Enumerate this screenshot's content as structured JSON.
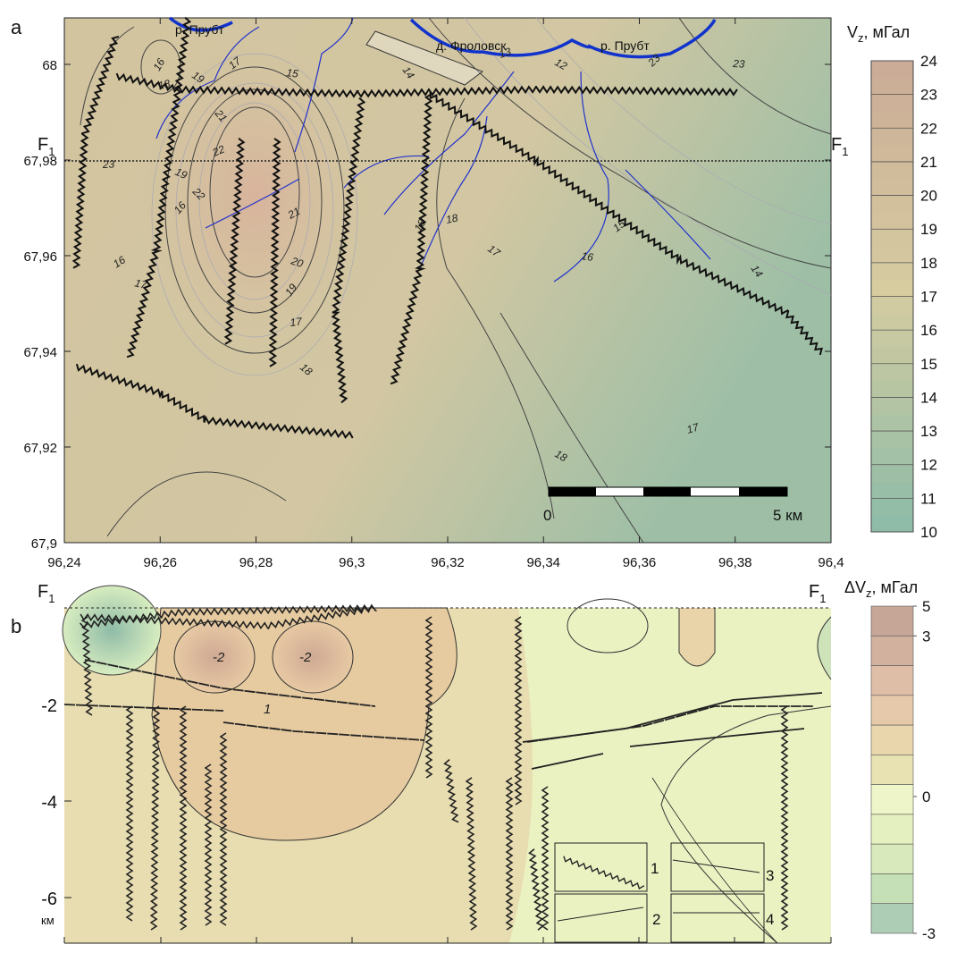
{
  "panel_a": {
    "label": "a",
    "x_ticks": [
      {
        "value": 96.24,
        "label": "96,24"
      },
      {
        "value": 96.26,
        "label": "96,26"
      },
      {
        "value": 96.28,
        "label": "96,28"
      },
      {
        "value": 96.3,
        "label": "96,3"
      },
      {
        "value": 96.32,
        "label": "96,32"
      },
      {
        "value": 96.34,
        "label": "96,34"
      },
      {
        "value": 96.36,
        "label": "96,36"
      },
      {
        "value": 96.38,
        "label": "96,38"
      },
      {
        "value": 96.4,
        "label": "96,4"
      }
    ],
    "y_ticks": [
      {
        "value": 67.9,
        "label": "67,9"
      },
      {
        "value": 67.92,
        "label": "67,92"
      },
      {
        "value": 67.94,
        "label": "67,94"
      },
      {
        "value": 67.96,
        "label": "67,96"
      },
      {
        "value": 67.98,
        "label": "67,98"
      },
      {
        "value": 68,
        "label": "68"
      }
    ],
    "colorbar": {
      "title": [
        "V",
        "z",
        ", мГал"
      ],
      "ticks": [
        24,
        23,
        22,
        21,
        20,
        19,
        18,
        17,
        16,
        15,
        14,
        13,
        12,
        11,
        10
      ]
    },
    "places": [
      "р. Прубт",
      "д. Фроловск",
      "р. Прубт"
    ],
    "profile": [
      "F",
      "1"
    ],
    "contour_labels": [
      "16",
      "18",
      "19",
      "17",
      "15",
      "14",
      "13",
      "12",
      "23",
      "23",
      "21",
      "22",
      "19",
      "16",
      "23",
      "22",
      "21",
      "20",
      "19",
      "17",
      "18",
      "16",
      "17",
      "18",
      "18",
      "17",
      "15",
      "16",
      "14",
      "17",
      "18"
    ],
    "scale_bar": [
      "0",
      "5 км"
    ]
  },
  "panel_b": {
    "label": "b",
    "y_ticks": [
      -2,
      -4,
      -6
    ],
    "y_unit": "км",
    "colorbar": {
      "title": [
        "ΔV",
        "z",
        ",  мГал"
      ],
      "ticks": [
        5,
        3,
        0,
        -3
      ]
    },
    "contour_labels": [
      "-2",
      "-2",
      "1"
    ],
    "legend": [
      "1",
      "2",
      "3",
      "4"
    ]
  }
}
